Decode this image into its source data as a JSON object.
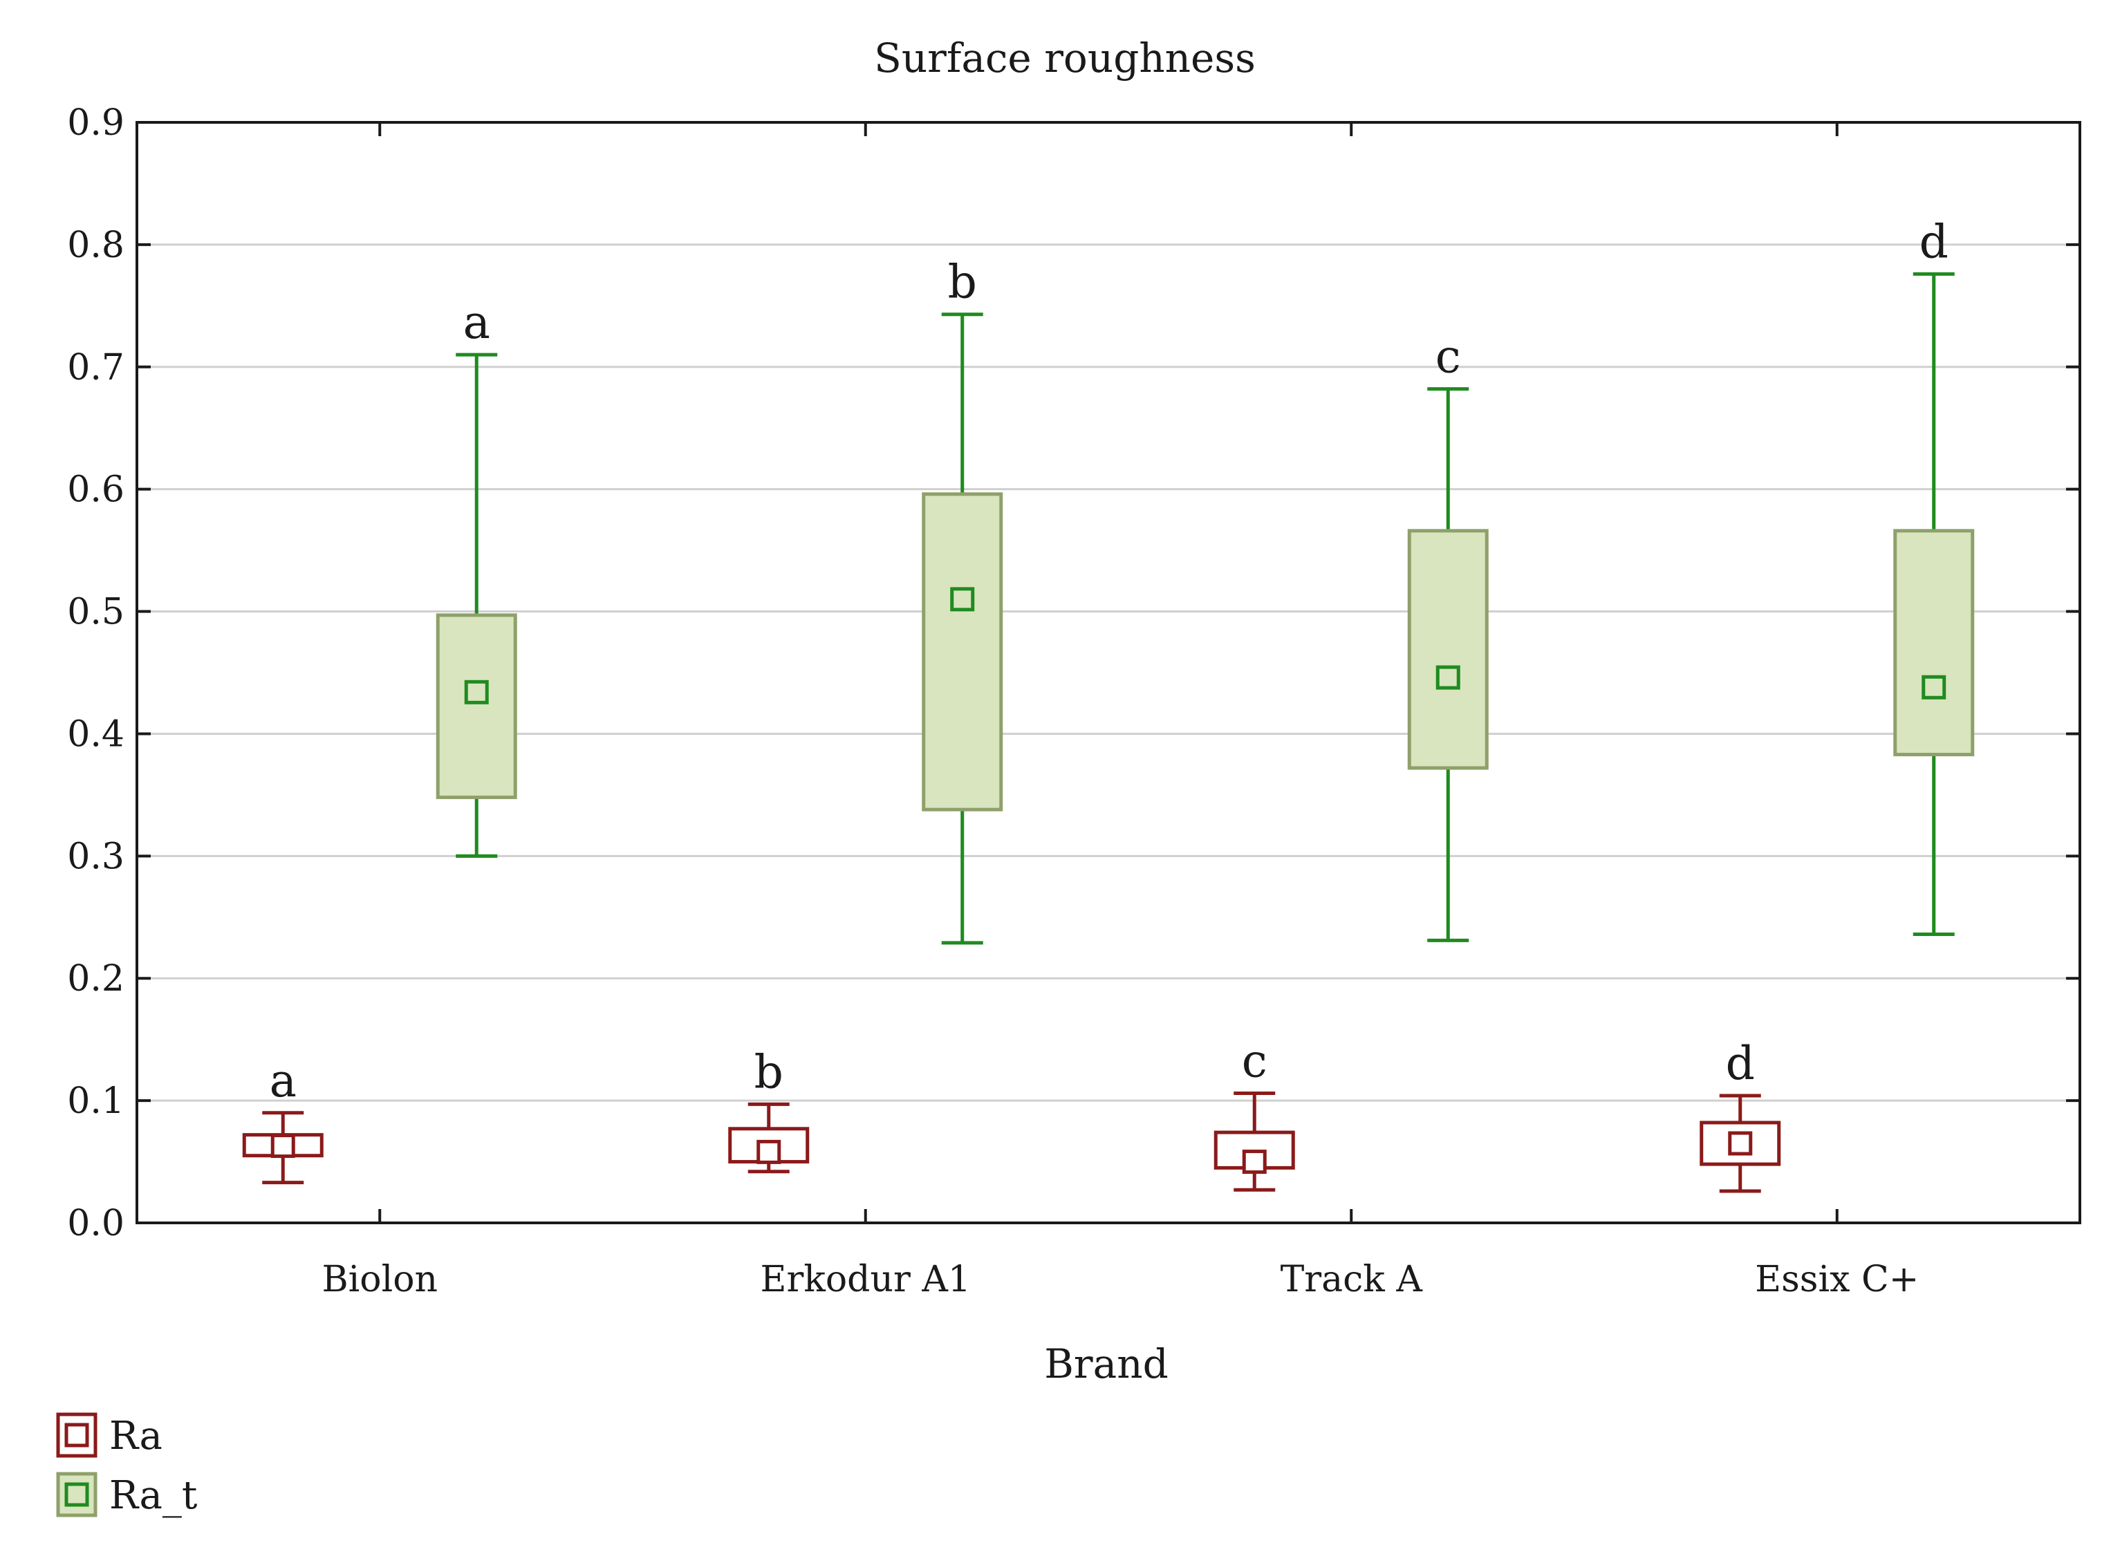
{
  "chart_data": {
    "type": "box",
    "title": "Surface roughness",
    "xlabel": "Brand",
    "ylabel": "",
    "ylim": [
      0.0,
      0.9
    ],
    "yticks": [
      "0.0",
      "0.1",
      "0.2",
      "0.3",
      "0.4",
      "0.5",
      "0.6",
      "0.7",
      "0.8",
      "0.9"
    ],
    "grid": true,
    "legend_position": "bottom-left",
    "categories": [
      "Biolon",
      "Erkodur A1",
      "Track A",
      "Essix C+"
    ],
    "series": [
      {
        "name": "Ra",
        "color": "#8B1A1A",
        "fill": "#ffffff",
        "median_marker_color": "#8B1A1A",
        "boxes": [
          {
            "category": "Biolon",
            "min": 0.033,
            "q1": 0.055,
            "median": 0.063,
            "q3": 0.072,
            "max": 0.09,
            "letter": "a"
          },
          {
            "category": "Erkodur A1",
            "min": 0.042,
            "q1": 0.05,
            "median": 0.058,
            "q3": 0.077,
            "max": 0.097,
            "letter": "b"
          },
          {
            "category": "Track A",
            "min": 0.027,
            "q1": 0.045,
            "median": 0.05,
            "q3": 0.074,
            "max": 0.106,
            "letter": "c"
          },
          {
            "category": "Essix C+",
            "min": 0.026,
            "q1": 0.048,
            "median": 0.065,
            "q3": 0.082,
            "max": 0.104,
            "letter": "d"
          }
        ]
      },
      {
        "name": "Ra_t",
        "color": "#1F8B1F",
        "fill": "#D9E5BF",
        "box_edge": "#8FA06A",
        "median_marker_color": "#1F8B1F",
        "boxes": [
          {
            "category": "Biolon",
            "min": 0.3,
            "q1": 0.348,
            "median": 0.434,
            "q3": 0.497,
            "max": 0.71,
            "letter": "a"
          },
          {
            "category": "Erkodur A1",
            "min": 0.229,
            "q1": 0.338,
            "median": 0.51,
            "q3": 0.596,
            "max": 0.743,
            "letter": "b"
          },
          {
            "category": "Track A",
            "min": 0.231,
            "q1": 0.372,
            "median": 0.446,
            "q3": 0.566,
            "max": 0.682,
            "letter": "c"
          },
          {
            "category": "Essix C+",
            "min": 0.236,
            "q1": 0.383,
            "median": 0.438,
            "q3": 0.566,
            "max": 0.776,
            "letter": "d"
          }
        ]
      }
    ]
  }
}
